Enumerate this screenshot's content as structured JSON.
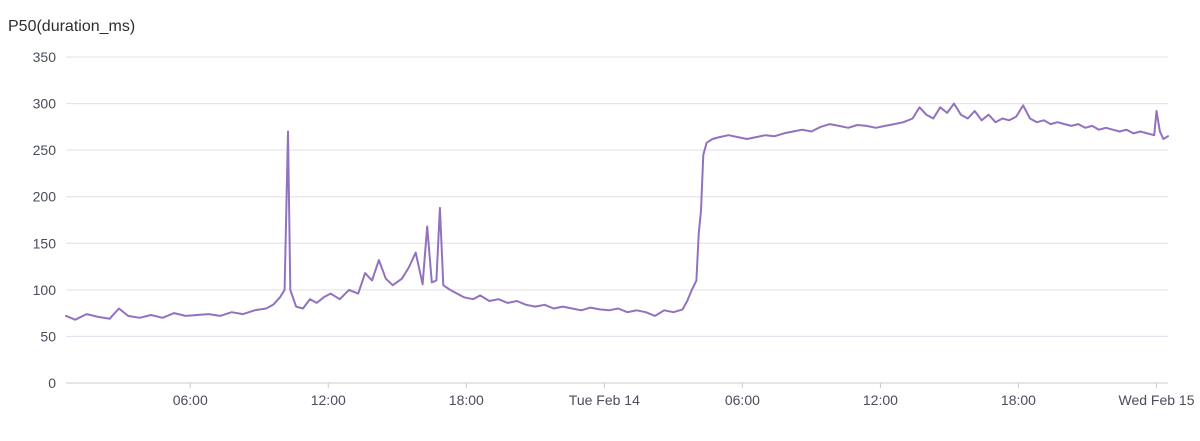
{
  "chart_data": {
    "type": "line",
    "title": "P50(duration_ms)",
    "xlabel": "",
    "ylabel": "",
    "ylim": [
      0,
      350
    ],
    "yticks": [
      0,
      50,
      100,
      150,
      200,
      250,
      300,
      350
    ],
    "grid": true,
    "x_unit": "hours since Feb 13 00:00",
    "xlim": [
      0.6,
      48.5
    ],
    "xticks": [
      {
        "hour": 6,
        "label": "06:00"
      },
      {
        "hour": 12,
        "label": "12:00"
      },
      {
        "hour": 18,
        "label": "18:00"
      },
      {
        "hour": 24,
        "label": "Tue Feb 14"
      },
      {
        "hour": 30,
        "label": "06:00"
      },
      {
        "hour": 36,
        "label": "12:00"
      },
      {
        "hour": 42,
        "label": "18:00"
      },
      {
        "hour": 48,
        "label": "Wed Feb 15"
      }
    ],
    "series": [
      {
        "name": "P50(duration_ms)",
        "color": "#9272bf",
        "points": [
          [
            0.6,
            72
          ],
          [
            1.0,
            68
          ],
          [
            1.5,
            74
          ],
          [
            2.0,
            71
          ],
          [
            2.5,
            69
          ],
          [
            2.9,
            80
          ],
          [
            3.3,
            72
          ],
          [
            3.8,
            70
          ],
          [
            4.3,
            73
          ],
          [
            4.8,
            70
          ],
          [
            5.3,
            75
          ],
          [
            5.8,
            72
          ],
          [
            6.3,
            73
          ],
          [
            6.8,
            74
          ],
          [
            7.3,
            72
          ],
          [
            7.8,
            76
          ],
          [
            8.3,
            74
          ],
          [
            8.8,
            78
          ],
          [
            9.3,
            80
          ],
          [
            9.6,
            84
          ],
          [
            9.9,
            92
          ],
          [
            10.1,
            100
          ],
          [
            10.25,
            270
          ],
          [
            10.35,
            100
          ],
          [
            10.6,
            82
          ],
          [
            10.9,
            80
          ],
          [
            11.2,
            90
          ],
          [
            11.5,
            86
          ],
          [
            11.8,
            92
          ],
          [
            12.1,
            96
          ],
          [
            12.5,
            90
          ],
          [
            12.9,
            100
          ],
          [
            13.3,
            96
          ],
          [
            13.6,
            118
          ],
          [
            13.9,
            110
          ],
          [
            14.2,
            132
          ],
          [
            14.5,
            112
          ],
          [
            14.8,
            105
          ],
          [
            15.2,
            112
          ],
          [
            15.5,
            124
          ],
          [
            15.8,
            140
          ],
          [
            16.1,
            106
          ],
          [
            16.3,
            168
          ],
          [
            16.5,
            108
          ],
          [
            16.7,
            110
          ],
          [
            16.85,
            188
          ],
          [
            17.0,
            105
          ],
          [
            17.3,
            100
          ],
          [
            17.6,
            96
          ],
          [
            17.9,
            92
          ],
          [
            18.3,
            90
          ],
          [
            18.6,
            94
          ],
          [
            19.0,
            88
          ],
          [
            19.4,
            90
          ],
          [
            19.8,
            86
          ],
          [
            20.2,
            88
          ],
          [
            20.6,
            84
          ],
          [
            21.0,
            82
          ],
          [
            21.4,
            84
          ],
          [
            21.8,
            80
          ],
          [
            22.2,
            82
          ],
          [
            22.6,
            80
          ],
          [
            23.0,
            78
          ],
          [
            23.4,
            81
          ],
          [
            23.8,
            79
          ],
          [
            24.2,
            78
          ],
          [
            24.6,
            80
          ],
          [
            25.0,
            76
          ],
          [
            25.4,
            78
          ],
          [
            25.8,
            76
          ],
          [
            26.2,
            72
          ],
          [
            26.6,
            78
          ],
          [
            27.0,
            76
          ],
          [
            27.4,
            79
          ],
          [
            27.6,
            88
          ],
          [
            27.8,
            100
          ],
          [
            28.0,
            110
          ],
          [
            28.1,
            160
          ],
          [
            28.2,
            185
          ],
          [
            28.3,
            245
          ],
          [
            28.45,
            258
          ],
          [
            28.7,
            262
          ],
          [
            29.0,
            264
          ],
          [
            29.4,
            266
          ],
          [
            29.8,
            264
          ],
          [
            30.2,
            262
          ],
          [
            30.6,
            264
          ],
          [
            31.0,
            266
          ],
          [
            31.4,
            265
          ],
          [
            31.8,
            268
          ],
          [
            32.2,
            270
          ],
          [
            32.6,
            272
          ],
          [
            33.0,
            270
          ],
          [
            33.4,
            275
          ],
          [
            33.8,
            278
          ],
          [
            34.2,
            276
          ],
          [
            34.6,
            274
          ],
          [
            35.0,
            277
          ],
          [
            35.4,
            276
          ],
          [
            35.8,
            274
          ],
          [
            36.2,
            276
          ],
          [
            36.6,
            278
          ],
          [
            37.0,
            280
          ],
          [
            37.4,
            284
          ],
          [
            37.7,
            296
          ],
          [
            38.0,
            288
          ],
          [
            38.3,
            284
          ],
          [
            38.6,
            296
          ],
          [
            38.9,
            290
          ],
          [
            39.2,
            300
          ],
          [
            39.5,
            288
          ],
          [
            39.8,
            284
          ],
          [
            40.1,
            292
          ],
          [
            40.4,
            282
          ],
          [
            40.7,
            288
          ],
          [
            41.0,
            280
          ],
          [
            41.3,
            284
          ],
          [
            41.6,
            282
          ],
          [
            41.9,
            286
          ],
          [
            42.2,
            298
          ],
          [
            42.5,
            284
          ],
          [
            42.8,
            280
          ],
          [
            43.1,
            282
          ],
          [
            43.4,
            278
          ],
          [
            43.7,
            280
          ],
          [
            44.0,
            278
          ],
          [
            44.3,
            276
          ],
          [
            44.6,
            278
          ],
          [
            44.9,
            274
          ],
          [
            45.2,
            276
          ],
          [
            45.5,
            272
          ],
          [
            45.8,
            274
          ],
          [
            46.1,
            272
          ],
          [
            46.4,
            270
          ],
          [
            46.7,
            272
          ],
          [
            47.0,
            268
          ],
          [
            47.3,
            270
          ],
          [
            47.6,
            268
          ],
          [
            47.9,
            266
          ],
          [
            48.0,
            292
          ],
          [
            48.15,
            270
          ],
          [
            48.3,
            262
          ],
          [
            48.5,
            265
          ]
        ]
      }
    ]
  }
}
